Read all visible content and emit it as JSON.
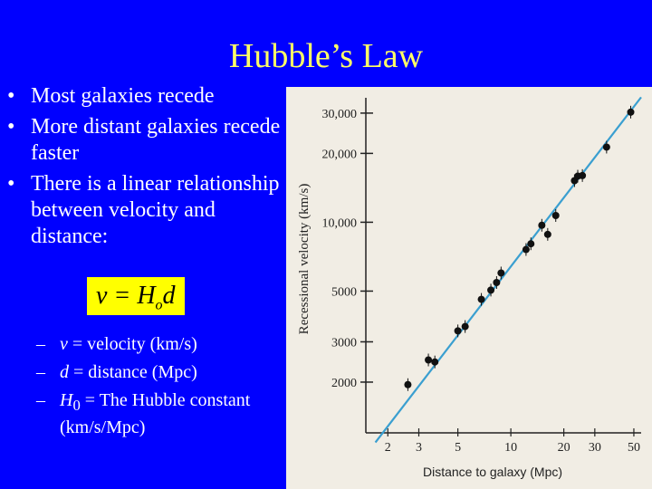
{
  "slide": {
    "title": "Hubble’s Law",
    "bullets": [
      "Most galaxies recede",
      "More distant galaxies recede faster",
      "There is a linear relationship between velocity and distance:"
    ],
    "formula": {
      "lhs": "v = H",
      "subscript": "o",
      "rhs": "d"
    },
    "definitions": [
      {
        "symbol": "v",
        "text": " = velocity (km/s)"
      },
      {
        "symbol": "d",
        "text": " = distance (Mpc)"
      },
      {
        "symbol": "H",
        "subscript": "0",
        "text": " = The Hubble constant (km/s/Mpc)"
      }
    ],
    "bullet_glyph": "•",
    "sub_bullet_glyph": "–"
  },
  "colors": {
    "background": "#0000ff",
    "title": "#ffff66",
    "formula_box": "#ffff00",
    "fit_line": "#3a9fd0",
    "points": "#111111",
    "chart_background": "#f1ede4"
  },
  "chart_data": {
    "type": "scatter",
    "title": "",
    "xlabel": "Distance to galaxy (Mpc)",
    "ylabel": "Recessional velocity (km/s)",
    "x_scale": "log",
    "y_scale": "log",
    "xlim": [
      1.5,
      55
    ],
    "ylim": [
      1200,
      35000
    ],
    "x_ticks": [
      {
        "value": 2,
        "label": "2"
      },
      {
        "value": 3,
        "label": "3"
      },
      {
        "value": 5,
        "label": "5"
      },
      {
        "value": 10,
        "label": "10"
      },
      {
        "value": 20,
        "label": "20"
      },
      {
        "value": 30,
        "label": "30"
      },
      {
        "value": 50,
        "label": "50"
      }
    ],
    "y_ticks": [
      {
        "value": 2000,
        "label": "2000"
      },
      {
        "value": 3000,
        "label": "3000"
      },
      {
        "value": 5000,
        "label": "5000"
      },
      {
        "value": 10000,
        "label": "10,000"
      },
      {
        "value": 20000,
        "label": "20,000"
      },
      {
        "value": 30000,
        "label": "30,000"
      }
    ],
    "points": [
      {
        "x": 2.6,
        "y": 1950
      },
      {
        "x": 3.4,
        "y": 2500
      },
      {
        "x": 3.7,
        "y": 2450
      },
      {
        "x": 5.0,
        "y": 3350
      },
      {
        "x": 5.5,
        "y": 3500
      },
      {
        "x": 6.8,
        "y": 4600
      },
      {
        "x": 7.7,
        "y": 5050
      },
      {
        "x": 8.3,
        "y": 5450
      },
      {
        "x": 8.8,
        "y": 6000
      },
      {
        "x": 12.2,
        "y": 7600
      },
      {
        "x": 13.0,
        "y": 8050
      },
      {
        "x": 15.0,
        "y": 9700
      },
      {
        "x": 16.2,
        "y": 8850
      },
      {
        "x": 18.0,
        "y": 10700
      },
      {
        "x": 23.0,
        "y": 15200
      },
      {
        "x": 24.0,
        "y": 15900
      },
      {
        "x": 25.5,
        "y": 16000
      },
      {
        "x": 35.0,
        "y": 21300
      },
      {
        "x": 48.0,
        "y": 30300
      }
    ],
    "fit_line": {
      "x": [
        1.7,
        55
      ],
      "y": [
        1090,
        35200
      ]
    },
    "grid": false,
    "legend": "none"
  }
}
